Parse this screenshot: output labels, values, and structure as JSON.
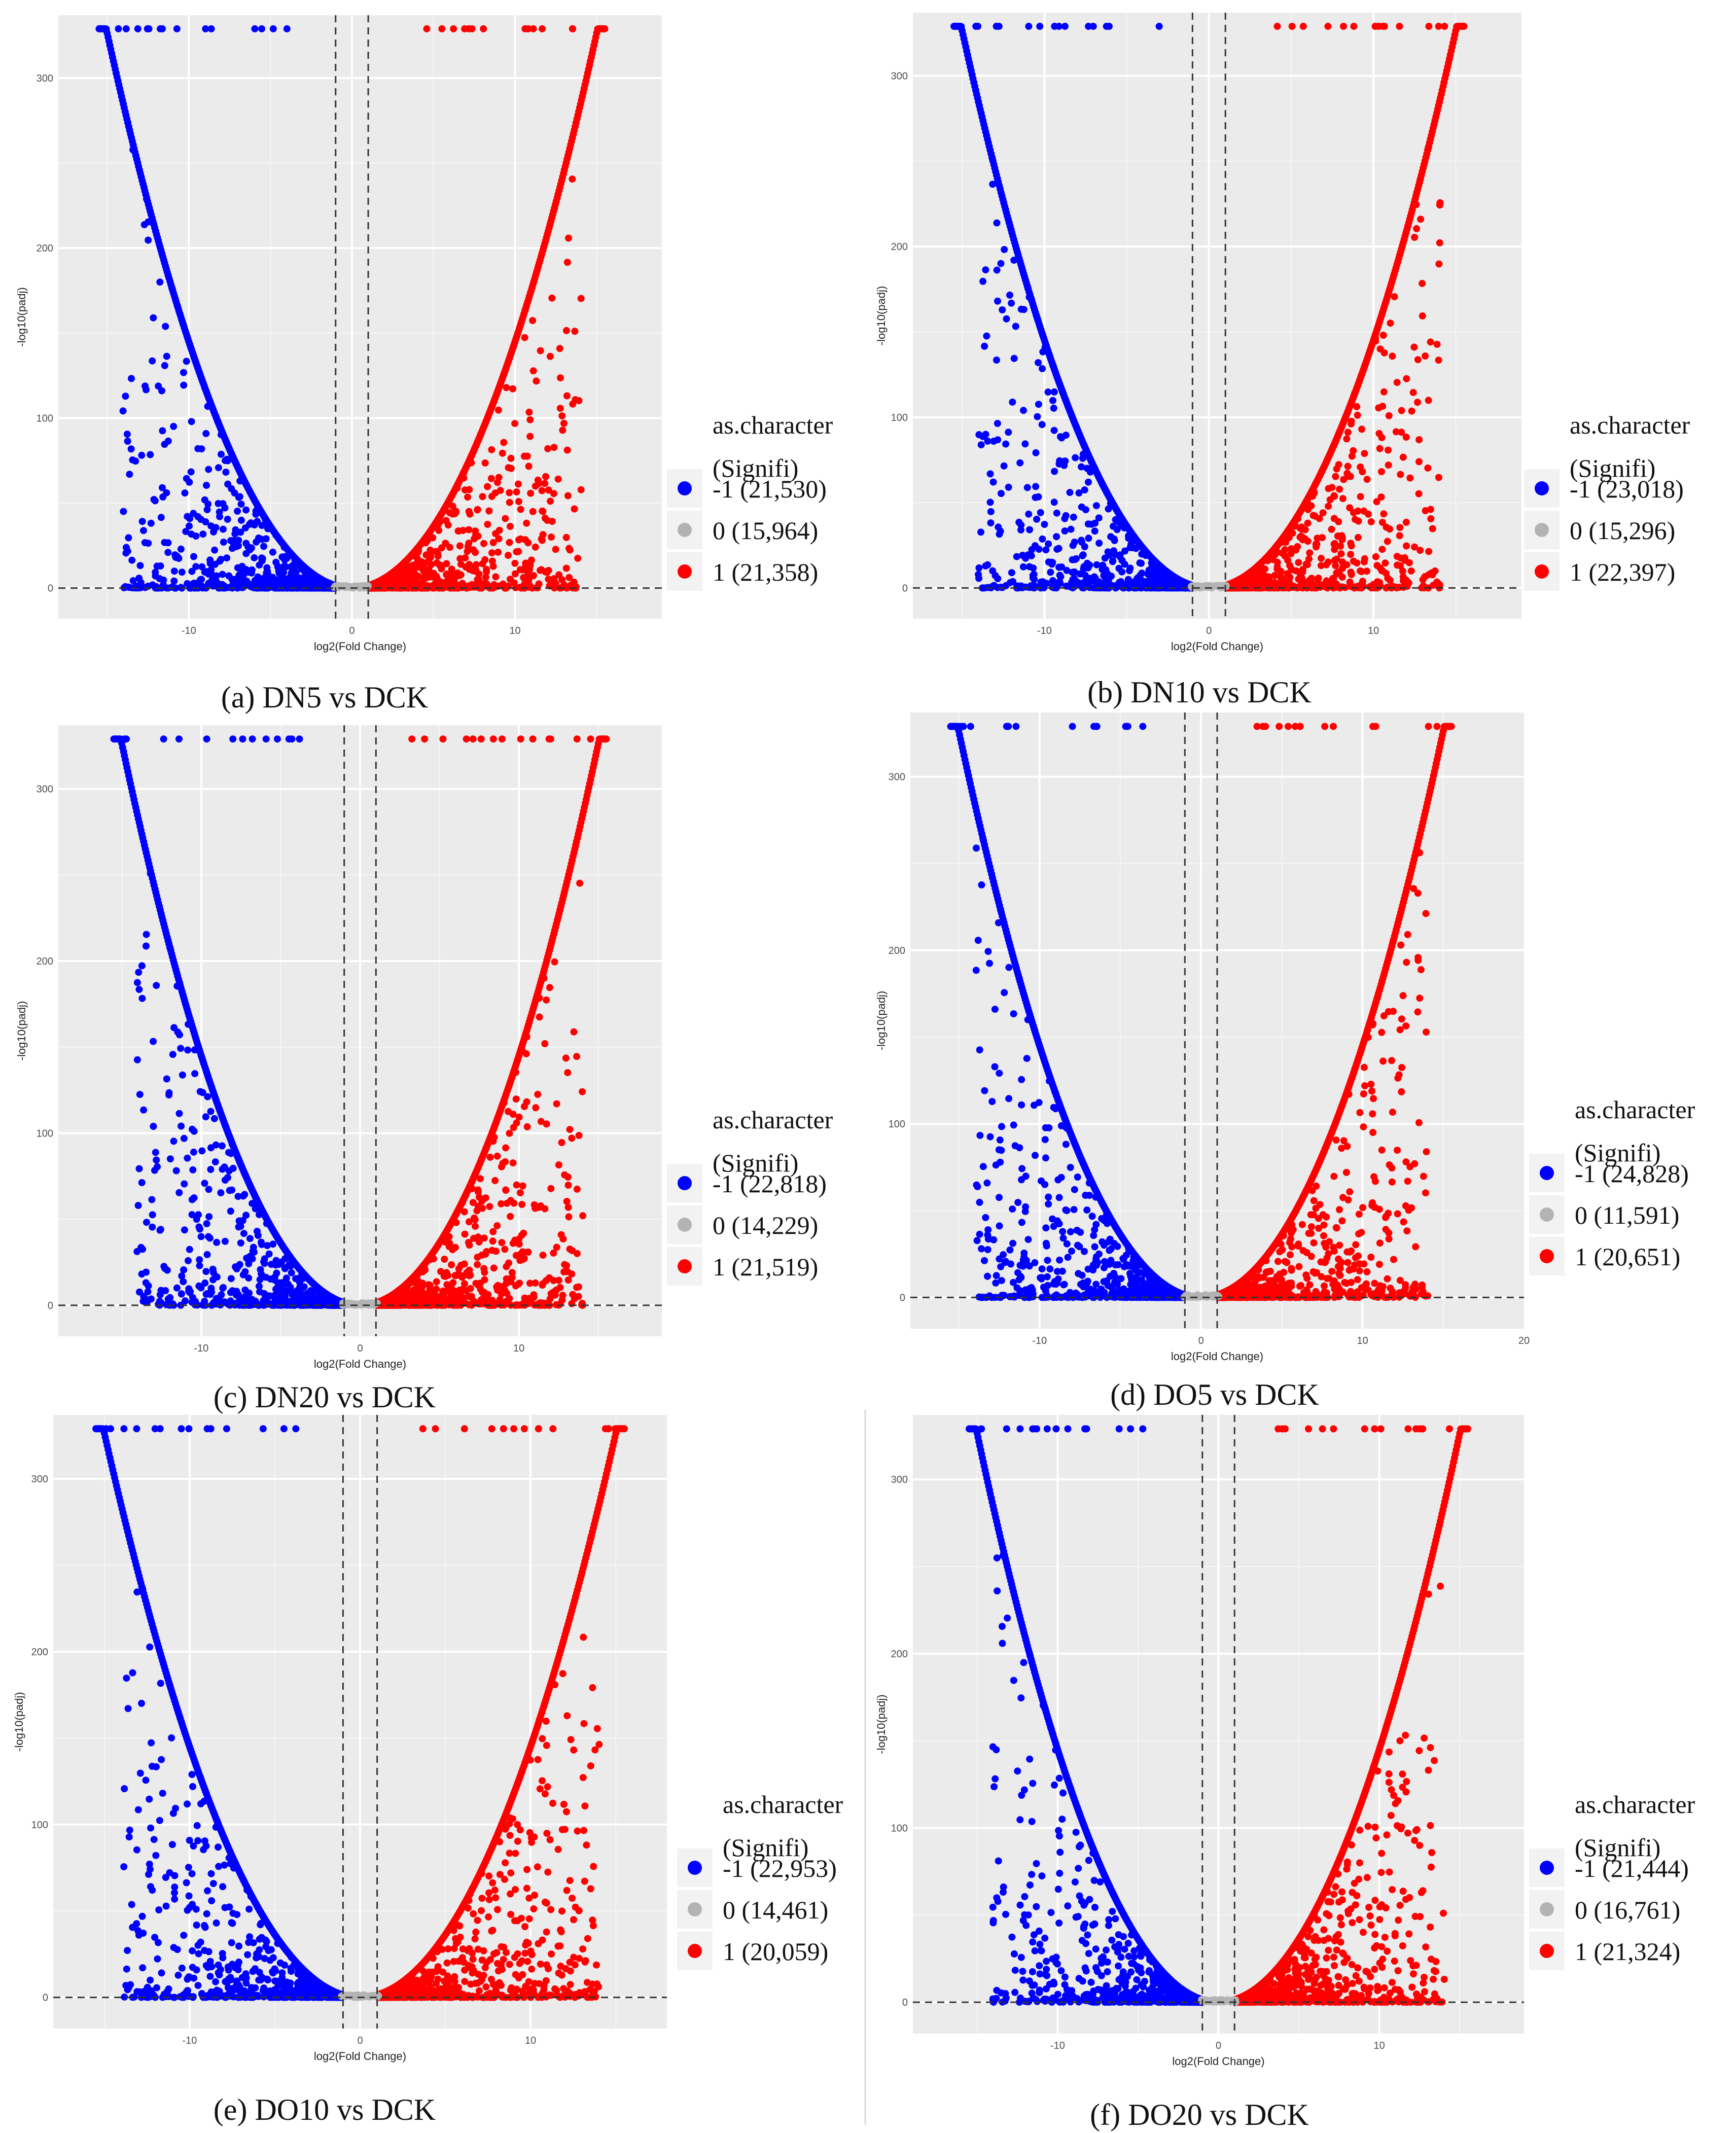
{
  "figure": {
    "colors": {
      "down": "#0000ff",
      "none": "#b3b3b3",
      "up": "#ff0000",
      "panel": "#ebebeb"
    }
  },
  "chart_data": [
    {
      "type": "scatter",
      "caption": "(a) DN5 vs DCK",
      "xlabel": "log2(Fold Change)",
      "ylabel": "-log10(padj)",
      "x_ticks": [
        "-10",
        "0",
        "10"
      ],
      "y_ticks": [
        "0",
        "100",
        "200",
        "300"
      ],
      "xlim": [
        -18,
        19
      ],
      "ylim": [
        -18,
        337
      ],
      "thresholds": {
        "x": [
          -1,
          1
        ],
        "y": 0
      },
      "legend_title": [
        "as.character",
        "(Signifi)"
      ],
      "series": [
        {
          "name": "-1 (21,530)",
          "value": -1,
          "count": 21530,
          "color": "#0000ff"
        },
        {
          "name": "0 (15,964)",
          "value": 0,
          "count": 15964,
          "color": "#b3b3b3"
        },
        {
          "name": "1 (21,358)",
          "value": 1,
          "count": 21358,
          "color": "#ff0000"
        }
      ]
    },
    {
      "type": "scatter",
      "caption": "(b) DN10 vs DCK",
      "xlabel": "log2(Fold Change)",
      "ylabel": "-log10(padj)",
      "x_ticks": [
        "-10",
        "0",
        "10"
      ],
      "y_ticks": [
        "0",
        "100",
        "200",
        "300"
      ],
      "xlim": [
        -18,
        19
      ],
      "ylim": [
        -18,
        337
      ],
      "thresholds": {
        "x": [
          -1,
          1
        ],
        "y": 0
      },
      "legend_title": [
        "as.character",
        "(Signifi)"
      ],
      "series": [
        {
          "name": "-1 (23,018)",
          "value": -1,
          "count": 23018,
          "color": "#0000ff"
        },
        {
          "name": "0 (15,296)",
          "value": 0,
          "count": 15296,
          "color": "#b3b3b3"
        },
        {
          "name": "1 (22,397)",
          "value": 1,
          "count": 22397,
          "color": "#ff0000"
        }
      ]
    },
    {
      "type": "scatter",
      "caption": "(c) DN20 vs DCK",
      "xlabel": "log2(Fold Change)",
      "ylabel": "-log10(padj)",
      "x_ticks": [
        "-10",
        "0",
        "10"
      ],
      "y_ticks": [
        "0",
        "100",
        "200",
        "300"
      ],
      "xlim": [
        -19,
        19
      ],
      "ylim": [
        -18,
        337
      ],
      "thresholds": {
        "x": [
          -1,
          1
        ],
        "y": 0
      },
      "legend_title": [
        "as.character",
        "(Signifi)"
      ],
      "series": [
        {
          "name": "-1 (22,818)",
          "value": -1,
          "count": 22818,
          "color": "#0000ff"
        },
        {
          "name": "0 (14,229)",
          "value": 0,
          "count": 14229,
          "color": "#b3b3b3"
        },
        {
          "name": "1 (21,519)",
          "value": 1,
          "count": 21519,
          "color": "#ff0000"
        }
      ]
    },
    {
      "type": "scatter",
      "caption": "(d) DO5 vs DCK",
      "xlabel": "log2(Fold Change)",
      "ylabel": "-log10(padj)",
      "x_ticks": [
        "-10",
        "0",
        "10",
        "20"
      ],
      "y_ticks": [
        "0",
        "100",
        "200",
        "300"
      ],
      "xlim": [
        -18,
        20
      ],
      "ylim": [
        -18,
        337
      ],
      "thresholds": {
        "x": [
          -1,
          1
        ],
        "y": 0
      },
      "legend_title": [
        "as.character",
        "(Signifi)"
      ],
      "series": [
        {
          "name": "-1 (24,828)",
          "value": -1,
          "count": 24828,
          "color": "#0000ff"
        },
        {
          "name": "0 (11,591)",
          "value": 0,
          "count": 11591,
          "color": "#b3b3b3"
        },
        {
          "name": "1 (20,651)",
          "value": 1,
          "count": 20651,
          "color": "#ff0000"
        }
      ]
    },
    {
      "type": "scatter",
      "caption": "(e) DO10 vs DCK",
      "xlabel": "log2(Fold Change)",
      "ylabel": "-log10(padj)",
      "x_ticks": [
        "-10",
        "0",
        "10"
      ],
      "y_ticks": [
        "0",
        "100",
        "200",
        "300"
      ],
      "xlim": [
        -18,
        18
      ],
      "ylim": [
        -18,
        337
      ],
      "thresholds": {
        "x": [
          -1,
          1
        ],
        "y": 0
      },
      "legend_title": [
        "as.character",
        "(Signifi)"
      ],
      "series": [
        {
          "name": "-1 (22,953)",
          "value": -1,
          "count": 22953,
          "color": "#0000ff"
        },
        {
          "name": "0 (14,461)",
          "value": 0,
          "count": 14461,
          "color": "#b3b3b3"
        },
        {
          "name": "1 (20,059)",
          "value": 1,
          "count": 20059,
          "color": "#ff0000"
        }
      ]
    },
    {
      "type": "scatter",
      "caption": "(f) DO20 vs DCK",
      "xlabel": "log2(Fold Change)",
      "ylabel": "-log10(padj)",
      "x_ticks": [
        "-10",
        "0",
        "10"
      ],
      "y_ticks": [
        "0",
        "100",
        "200",
        "300"
      ],
      "xlim": [
        -19,
        19
      ],
      "ylim": [
        -18,
        337
      ],
      "thresholds": {
        "x": [
          -1,
          1
        ],
        "y": 0
      },
      "legend_title": [
        "as.character",
        "(Signifi)"
      ],
      "series": [
        {
          "name": "-1 (21,444)",
          "value": -1,
          "count": 21444,
          "color": "#0000ff"
        },
        {
          "name": "0 (16,761)",
          "value": 0,
          "count": 16761,
          "color": "#b3b3b3"
        },
        {
          "name": "1 (21,324)",
          "value": 1,
          "count": 21324,
          "color": "#ff0000"
        }
      ]
    }
  ]
}
